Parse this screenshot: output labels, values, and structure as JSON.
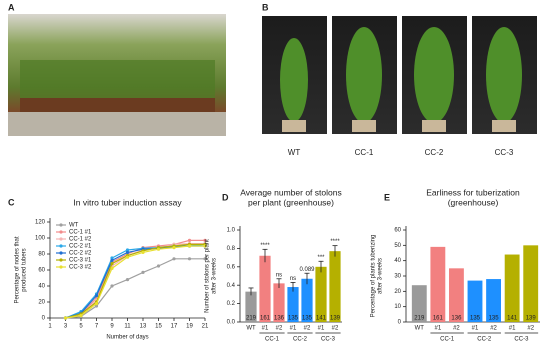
{
  "photos": {
    "a_letter": "A",
    "b_letter": "B",
    "b_captions": [
      "WT",
      "CC-1",
      "CC-2",
      "CC-3"
    ]
  },
  "chart_data": [
    {
      "type": "line",
      "panel": "C",
      "title": [
        "In vitro tuber induction assay"
      ],
      "y_label": [
        "Percentage of nodes that",
        "produced tubers"
      ],
      "x_label": "Number of days",
      "x": [
        3,
        5,
        7,
        9,
        11,
        13,
        15,
        17,
        19,
        21
      ],
      "xlim": [
        1,
        21
      ],
      "xticks": [
        1,
        3,
        5,
        7,
        9,
        11,
        13,
        15,
        17,
        19,
        21
      ],
      "ylim": [
        0,
        120
      ],
      "yticks": [
        0,
        20,
        40,
        60,
        80,
        100,
        120
      ],
      "series": [
        {
          "name": "WT",
          "color": "#a0a0a0",
          "values": [
            0,
            2,
            15,
            40,
            48,
            57,
            65,
            74,
            74,
            74
          ]
        },
        {
          "name": "CC-1 #1",
          "color": "#f28b8b",
          "values": [
            0,
            5,
            25,
            70,
            80,
            88,
            90,
            92,
            97,
            97
          ]
        },
        {
          "name": "CC-1 #2",
          "color": "#f6b4b4",
          "values": [
            0,
            4,
            22,
            65,
            78,
            85,
            88,
            92,
            93,
            93
          ]
        },
        {
          "name": "CC-2 #1",
          "color": "#2aa8e8",
          "values": [
            0,
            8,
            30,
            75,
            85,
            87,
            88,
            90,
            90,
            92
          ]
        },
        {
          "name": "CC-2 #2",
          "color": "#1f6fd1",
          "values": [
            0,
            6,
            28,
            72,
            82,
            86,
            87,
            89,
            90,
            90
          ]
        },
        {
          "name": "CC-3 #1",
          "color": "#b5b000",
          "values": [
            0,
            5,
            20,
            68,
            78,
            84,
            88,
            90,
            92,
            92
          ]
        },
        {
          "name": "CC-3 #2",
          "color": "#e8e030",
          "values": [
            0,
            3,
            18,
            62,
            76,
            82,
            86,
            88,
            90,
            90
          ]
        }
      ]
    },
    {
      "type": "bar",
      "panel": "D",
      "title": [
        "Average number of stolons",
        "per plant (greenhouse)"
      ],
      "y_label": [
        "Number of stolons per plant",
        "after 3-weeks"
      ],
      "categories": [
        "WT",
        "#1",
        "#2",
        "#1",
        "#2",
        "#1",
        "#2"
      ],
      "groups": [
        "CC-1",
        "CC-2",
        "CC-3"
      ],
      "values": [
        0.33,
        0.72,
        0.42,
        0.38,
        0.47,
        0.6,
        0.77
      ],
      "errors": [
        0.04,
        0.07,
        0.05,
        0.05,
        0.06,
        0.06,
        0.06
      ],
      "bar_labels": [
        219,
        161,
        136,
        135,
        135,
        141,
        139
      ],
      "significance": [
        null,
        "****",
        "ns",
        "ns",
        "0.089",
        "***",
        "****"
      ],
      "colors": [
        "#9a9a9a",
        "#f28080",
        "#f28080",
        "#1e90ff",
        "#1e90ff",
        "#b5b000",
        "#b5b000"
      ],
      "ylim": [
        0,
        1
      ],
      "yticks": [
        {
          "value": 0,
          "label": "0.0"
        },
        0.2,
        0.4,
        0.6,
        0.8,
        {
          "value": 1,
          "label": "1.0"
        }
      ]
    },
    {
      "type": "bar",
      "panel": "E",
      "title": [
        "Earliness for tuberization",
        "(greenhouse)"
      ],
      "y_label": [
        "Percentage of plants tuberizing",
        "after 3-weeks"
      ],
      "categories": [
        "WT",
        "#1",
        "#2",
        "#1",
        "#2",
        "#1",
        "#2"
      ],
      "groups": [
        "CC-1",
        "CC-2",
        "CC-3"
      ],
      "values": [
        24,
        49,
        35,
        27,
        28,
        44,
        50
      ],
      "bar_labels": [
        219,
        161,
        136,
        135,
        135,
        141,
        139
      ],
      "colors": [
        "#9a9a9a",
        "#f28080",
        "#f28080",
        "#1e90ff",
        "#1e90ff",
        "#b5b000",
        "#b5b000"
      ],
      "ylim": [
        0,
        60
      ],
      "yticks": [
        0,
        10,
        20,
        30,
        40,
        50,
        60
      ]
    }
  ]
}
